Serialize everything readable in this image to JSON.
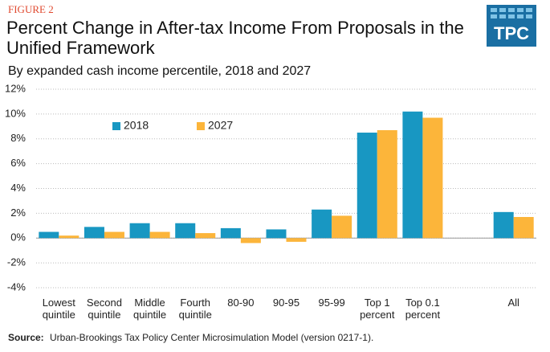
{
  "figure_label": "FIGURE 2",
  "logo": "TPC",
  "chart_data": {
    "type": "bar",
    "title": "Percent Change in After-tax Income From Proposals in the Unified Framework",
    "subtitle": "By expanded cash income percentile, 2018 and 2027",
    "categories": [
      "Lowest quintile",
      "Second quintile",
      "Middle quintile",
      "Fourth quintile",
      "80-90",
      "90-95",
      "95-99",
      "Top 1 percent",
      "Top 0.1 percent",
      null,
      "All"
    ],
    "series": [
      {
        "name": "2018",
        "color": "#1897c2",
        "values": [
          0.5,
          0.9,
          1.2,
          1.2,
          0.8,
          0.7,
          2.3,
          8.5,
          10.2,
          null,
          2.1
        ]
      },
      {
        "name": "2027",
        "color": "#fcb53a",
        "values": [
          0.2,
          0.5,
          0.5,
          0.4,
          -0.4,
          -0.3,
          1.8,
          8.7,
          9.7,
          null,
          1.7
        ]
      }
    ],
    "ylim": [
      -4,
      12
    ],
    "yticks": [
      {
        "value": -4,
        "label": "-4%"
      },
      {
        "value": -2,
        "label": "-2%"
      },
      {
        "value": 0,
        "label": "0%"
      },
      {
        "value": 2,
        "label": "2%"
      },
      {
        "value": 4,
        "label": "4%"
      },
      {
        "value": 6,
        "label": "6%"
      },
      {
        "value": 8,
        "label": "8%"
      },
      {
        "value": 10,
        "label": "10%"
      },
      {
        "value": 12,
        "label": "12%"
      }
    ],
    "grid": true,
    "source_label": "Source:",
    "source": "Urban-Brookings Tax Policy Center Microsimulation Model (version 0217-1)."
  }
}
